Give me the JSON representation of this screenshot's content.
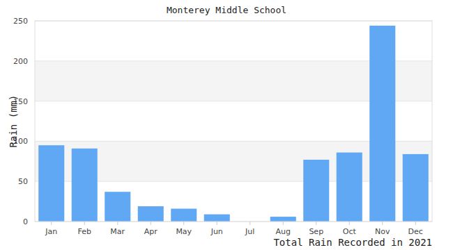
{
  "chart_data": {
    "type": "bar",
    "title": "Monterey Middle School",
    "x_label": "Total Rain Recorded in 2021",
    "y_label": "Rain (mm)",
    "categories": [
      "Jan",
      "Feb",
      "Mar",
      "Apr",
      "May",
      "Jun",
      "Jul",
      "Aug",
      "Sep",
      "Oct",
      "Nov",
      "Dec"
    ],
    "values": [
      95,
      91,
      37,
      19,
      16,
      9,
      0,
      6,
      77,
      86,
      244,
      84
    ],
    "color": "#60a8f4",
    "ylim": [
      0,
      250
    ],
    "yticks": [
      0,
      50,
      100,
      150,
      200,
      250
    ],
    "grid": true
  }
}
